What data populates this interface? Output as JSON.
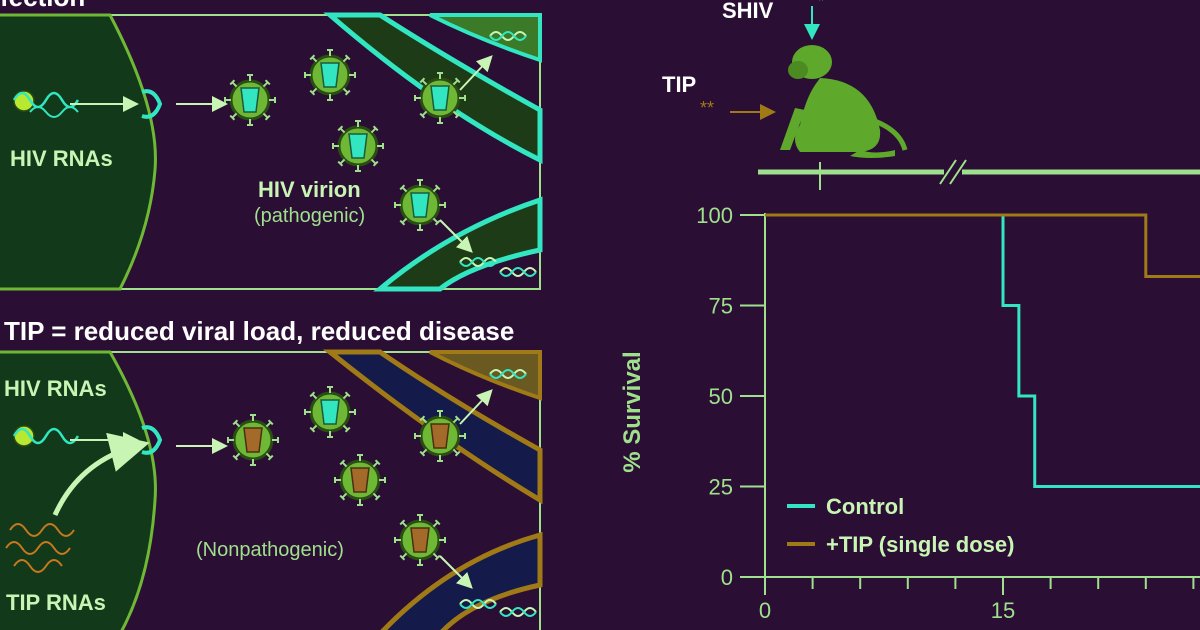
{
  "colors": {
    "background": "#2a0e33",
    "panel_border": "#9fe08c",
    "cell_fill": "#123a1a",
    "text_light": "#c8f5b4",
    "text_green": "#9fe08c",
    "cyan": "#31e6c0",
    "tip_gold": "#a07a16",
    "monkey": "#5ea82c",
    "virion_green": "#6fb836",
    "timeline": "#9fe08c"
  },
  "panel_top": {
    "heading": "fection",
    "hiv_rnas": "HIV RNAs",
    "virion_title": "HIV virion",
    "virion_sub": "(pathogenic)"
  },
  "panel_bottom": {
    "heading": "TIP = reduced viral load, reduced disease",
    "hiv_rnas": "HIV RNAs",
    "tip_rnas": "TIP RNAs",
    "virion_sub": "(Nonpathogenic)"
  },
  "experiment": {
    "shiv_label": "SHIV",
    "tip_label": "TIP",
    "tip_marker": "**",
    "monkey_icon": "monkey-icon"
  },
  "chart_data": {
    "type": "line",
    "title": "",
    "xlabel": "",
    "ylabel": "% Survival",
    "ylim": [
      0,
      100
    ],
    "yticks": [
      "0",
      "25",
      "50",
      "75",
      "100"
    ],
    "xticks": [
      "0",
      "15"
    ],
    "xlim": [
      0,
      28
    ],
    "series": [
      {
        "name": "Control",
        "color": "#31e6c0",
        "points": [
          [
            0,
            100
          ],
          [
            15,
            100
          ],
          [
            15,
            75
          ],
          [
            16,
            75
          ],
          [
            16,
            50
          ],
          [
            17,
            50
          ],
          [
            17,
            25
          ],
          [
            28,
            25
          ]
        ]
      },
      {
        "name": "+TIP (single dose)",
        "color": "#a07a16",
        "points": [
          [
            0,
            100
          ],
          [
            24,
            100
          ],
          [
            24,
            83
          ],
          [
            28,
            83
          ]
        ]
      }
    ]
  }
}
